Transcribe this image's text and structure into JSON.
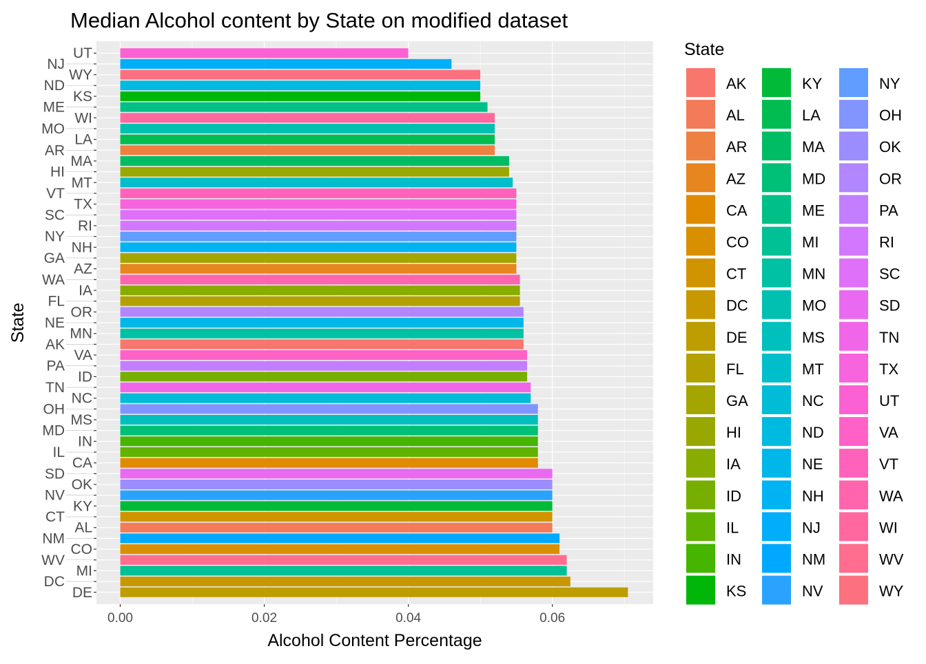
{
  "chart_data": {
    "type": "bar",
    "orientation": "horizontal",
    "title": "Median Alcohol content by State on modified dataset",
    "xlabel": "Alcohol Content Percentage",
    "ylabel": "State",
    "xlim": [
      -0.0033,
      0.074
    ],
    "x_ticks": [
      0.0,
      0.02,
      0.04,
      0.06
    ],
    "x_tick_labels": [
      "0.00",
      "0.02",
      "0.04",
      "0.06"
    ],
    "grid": true,
    "categories": [
      "UT",
      "NJ",
      "WY",
      "ND",
      "KS",
      "ME",
      "WI",
      "MO",
      "LA",
      "AR",
      "MA",
      "HI",
      "MT",
      "VT",
      "TX",
      "SC",
      "RI",
      "NY",
      "NH",
      "GA",
      "AZ",
      "WA",
      "IA",
      "FL",
      "OR",
      "NE",
      "MN",
      "AK",
      "VA",
      "PA",
      "ID",
      "TN",
      "NC",
      "OH",
      "MS",
      "MD",
      "IN",
      "IL",
      "CA",
      "SD",
      "OK",
      "NV",
      "KY",
      "CT",
      "AL",
      "NM",
      "CO",
      "WV",
      "MI",
      "DC",
      "DE"
    ],
    "values": [
      0.04,
      0.046,
      0.05,
      0.05,
      0.05,
      0.051,
      0.052,
      0.052,
      0.052,
      0.052,
      0.054,
      0.054,
      0.0545,
      0.055,
      0.055,
      0.055,
      0.055,
      0.055,
      0.055,
      0.055,
      0.055,
      0.0555,
      0.0555,
      0.0555,
      0.056,
      0.056,
      0.056,
      0.056,
      0.0565,
      0.0565,
      0.0565,
      0.057,
      0.057,
      0.058,
      0.058,
      0.058,
      0.058,
      0.058,
      0.058,
      0.06,
      0.06,
      0.06,
      0.06,
      0.06,
      0.06,
      0.061,
      0.061,
      0.062,
      0.062,
      0.0625,
      0.0705
    ],
    "legend": {
      "title": "State",
      "position": "right",
      "entries": [
        "AK",
        "AL",
        "AR",
        "AZ",
        "CA",
        "CO",
        "CT",
        "DC",
        "DE",
        "FL",
        "GA",
        "HI",
        "IA",
        "ID",
        "IL",
        "IN",
        "KS",
        "KY",
        "LA",
        "MA",
        "MD",
        "ME",
        "MI",
        "MN",
        "MO",
        "MS",
        "MT",
        "NC",
        "ND",
        "NE",
        "NH",
        "NJ",
        "NM",
        "NV",
        "NY",
        "OH",
        "OK",
        "OR",
        "PA",
        "RI",
        "SC",
        "SD",
        "TN",
        "TX",
        "UT",
        "VA",
        "VT",
        "WA",
        "WI",
        "WV",
        "WY"
      ]
    }
  },
  "colors": {
    "panel": "#EBEBEB",
    "grid": "#FFFFFF",
    "text": "#4D4D4D",
    "title": "#000000"
  }
}
